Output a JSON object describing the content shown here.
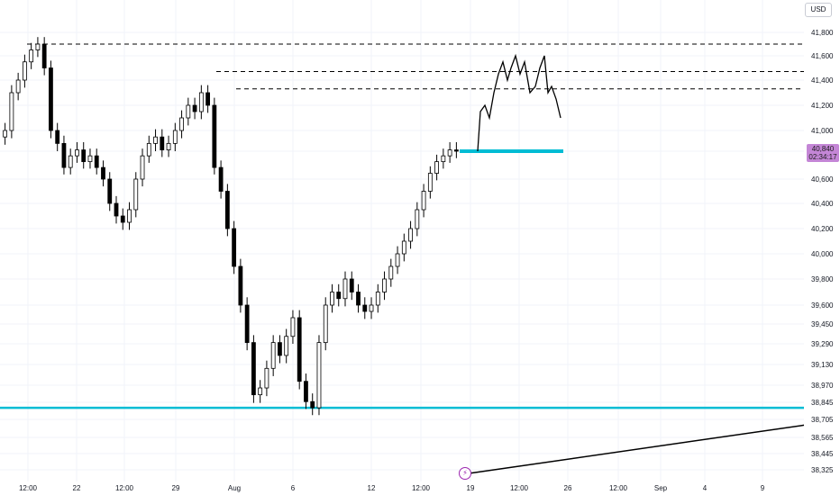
{
  "header": {
    "currency": "USD"
  },
  "last_price": {
    "value": "40,840",
    "countdown": "02:34:17"
  },
  "event_icon": "lightning-icon",
  "colors": {
    "candle": "#000000",
    "support": "#00bcd4",
    "price_tag": "#c486d6",
    "grid": "#f0f3fa",
    "dashed": "#000000"
  },
  "chart_data": {
    "type": "candlestick",
    "y_ticks": [
      "41,800",
      "41,600",
      "41,400",
      "41,200",
      "41,000",
      "40,840",
      "40,600",
      "40,400",
      "40,200",
      "40,000",
      "39,800",
      "39,600",
      "39,450",
      "39,290",
      "39,130",
      "38,970",
      "38,845",
      "38,705",
      "38,565",
      "38,445",
      "38,325"
    ],
    "x_ticks": [
      "12:00",
      "22",
      "12:00",
      "29",
      "Aug",
      "6",
      "12",
      "12:00",
      "19",
      "12:00",
      "26",
      "12:00",
      "Sep",
      "4",
      "9"
    ],
    "horizontal_levels": [
      {
        "kind": "dashed",
        "value": 41700
      },
      {
        "kind": "dashed",
        "value": 41470
      },
      {
        "kind": "dashed",
        "value": 41330
      },
      {
        "kind": "support-solid",
        "value": 38800
      },
      {
        "kind": "support-short",
        "value": 40840
      }
    ],
    "trendline": {
      "from": {
        "x": "19",
        "y": 38300
      },
      "to": {
        "x": "beyond 9",
        "y": 38660
      }
    },
    "projection_path": "hand-drawn forecast after 19 reaching ~41,600 and returning to ~41,100",
    "closes": [
      41000,
      41300,
      41400,
      41550,
      41650,
      41700,
      41500,
      41000,
      40900,
      40700,
      40800,
      40850,
      40750,
      40800,
      40700,
      40600,
      40400,
      40300,
      40250,
      40350,
      40600,
      40800,
      40900,
      40950,
      40850,
      40900,
      41000,
      41100,
      41200,
      41150,
      41300,
      41200,
      40700,
      40500,
      40200,
      39900,
      39600,
      39300,
      38900,
      38950,
      39100,
      39300,
      39200,
      39350,
      39500,
      39000,
      38850,
      38800,
      39300,
      39600,
      39700,
      39650,
      39800,
      39700,
      39600,
      39550,
      39600,
      39700,
      39800,
      39900,
      40000,
      40100,
      40200,
      40350,
      40500,
      40650,
      40750,
      40800,
      40850,
      40840
    ]
  }
}
